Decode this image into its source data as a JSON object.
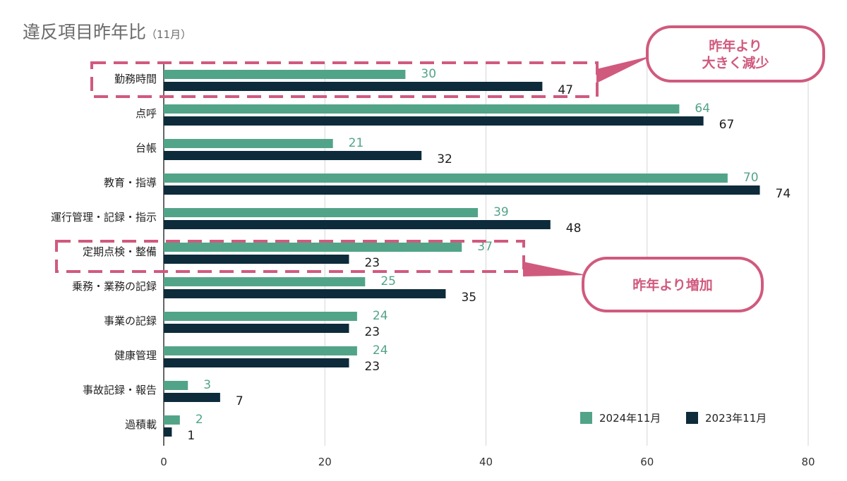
{
  "chart_data": {
    "type": "bar",
    "orientation": "horizontal",
    "title": "違反項目昨年比",
    "subtitle": "（11月）",
    "categories": [
      "勤務時間",
      "点呼",
      "台帳",
      "教育・指導",
      "運行管理・記録・指示",
      "定期点検・整備",
      "乗務・業務の記録",
      "事業の記録",
      "健康管理",
      "事故記録・報告",
      "過積載"
    ],
    "series": [
      {
        "name": "2024年11月",
        "color": "#52a488",
        "values": [
          30,
          64,
          21,
          70,
          39,
          37,
          25,
          24,
          24,
          3,
          2
        ]
      },
      {
        "name": "2023年11月",
        "color": "#0d2b3a",
        "values": [
          47,
          67,
          32,
          74,
          48,
          23,
          35,
          23,
          23,
          7,
          1
        ]
      }
    ],
    "xlim": [
      0,
      80
    ],
    "xticks": [
      0,
      20,
      40,
      60,
      80
    ],
    "grid": true,
    "legend_position": "bottom-right",
    "annotations": [
      {
        "text": [
          "昨年より",
          "大きく減少"
        ],
        "target": "勤務時間"
      },
      {
        "text": [
          "昨年より増加"
        ],
        "target": "定期点検・整備"
      }
    ],
    "annotation_color": "#d05a7e"
  }
}
